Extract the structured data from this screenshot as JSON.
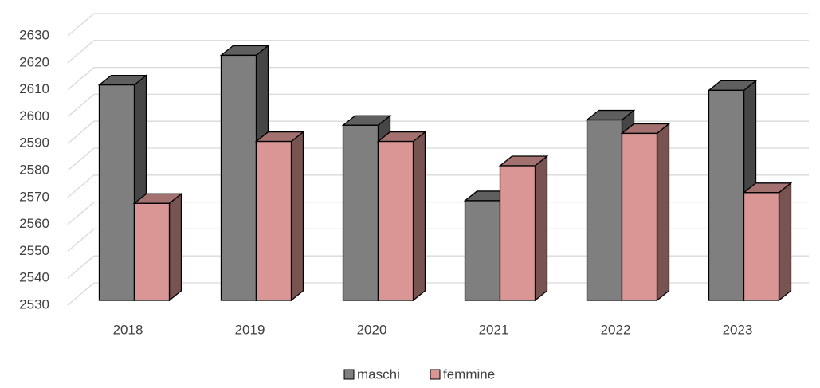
{
  "chart_data": {
    "type": "bar3d",
    "categories": [
      "2018",
      "2019",
      "2020",
      "2021",
      "2022",
      "2023"
    ],
    "series": [
      {
        "name": "maschi",
        "color": "#7f7f7f",
        "values": [
          2610,
          2621,
          2595,
          2567,
          2597,
          2608
        ]
      },
      {
        "name": "femmine",
        "color": "#d99694",
        "values": [
          2566,
          2589,
          2589,
          2580,
          2592,
          2570
        ]
      }
    ],
    "ylim": [
      2530,
      2630
    ],
    "yticks": [
      2530,
      2540,
      2550,
      2560,
      2570,
      2580,
      2590,
      2600,
      2610,
      2620,
      2630
    ],
    "grid": true,
    "legend": "bottom"
  }
}
